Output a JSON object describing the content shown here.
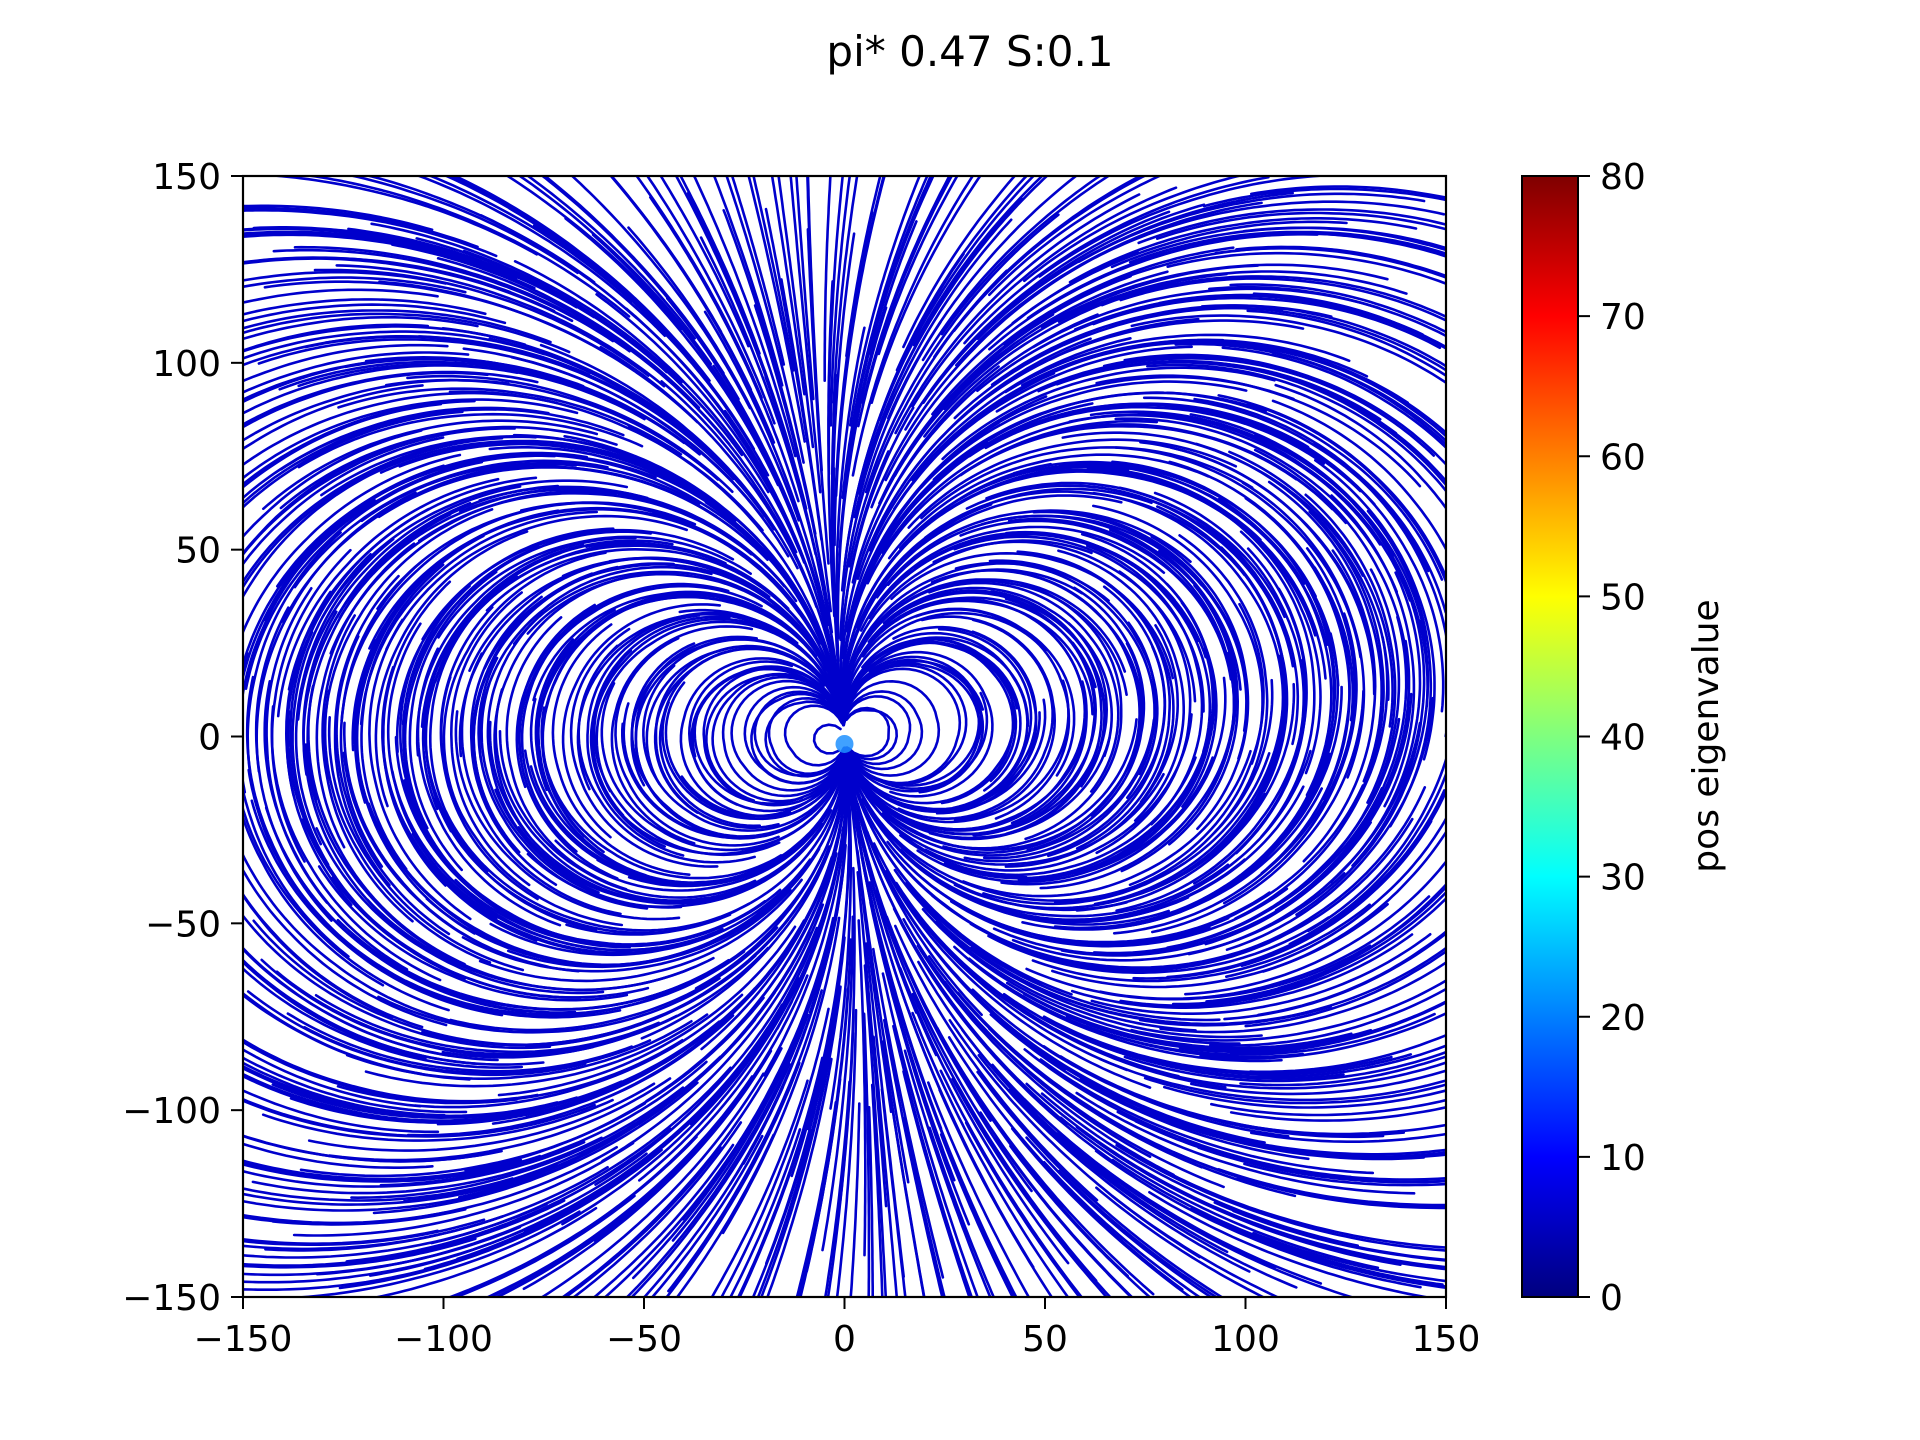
{
  "chart_data": {
    "type": "streamplot",
    "title": "pi* 0.47 S:0.1",
    "xlim": [
      -150,
      150
    ],
    "ylim": [
      -150,
      150
    ],
    "x_ticks": [
      -150,
      -100,
      -50,
      0,
      50,
      100,
      150
    ],
    "y_ticks": [
      -150,
      -100,
      -50,
      0,
      50,
      100,
      150
    ],
    "x_tick_labels": [
      "−150",
      "−100",
      "−50",
      "0",
      "50",
      "100",
      "150"
    ],
    "y_tick_labels": [
      "−150",
      "−100",
      "−50",
      "0",
      "50",
      "100",
      "150"
    ],
    "grid": false,
    "line_color": "#0000cc",
    "colorbar": {
      "label": "pos eigenvalue",
      "range": [
        0,
        80
      ],
      "ticks": [
        0,
        10,
        20,
        30,
        40,
        50,
        60,
        70,
        80
      ],
      "tick_labels": [
        "0",
        "10",
        "20",
        "30",
        "40",
        "50",
        "60",
        "70",
        "80"
      ],
      "colormap": "jet",
      "colormap_stops": [
        "#00007f",
        "#0000ff",
        "#007fff",
        "#00ffff",
        "#7fff7f",
        "#ffff00",
        "#ff7f00",
        "#ff0000",
        "#7f0000"
      ]
    }
  }
}
